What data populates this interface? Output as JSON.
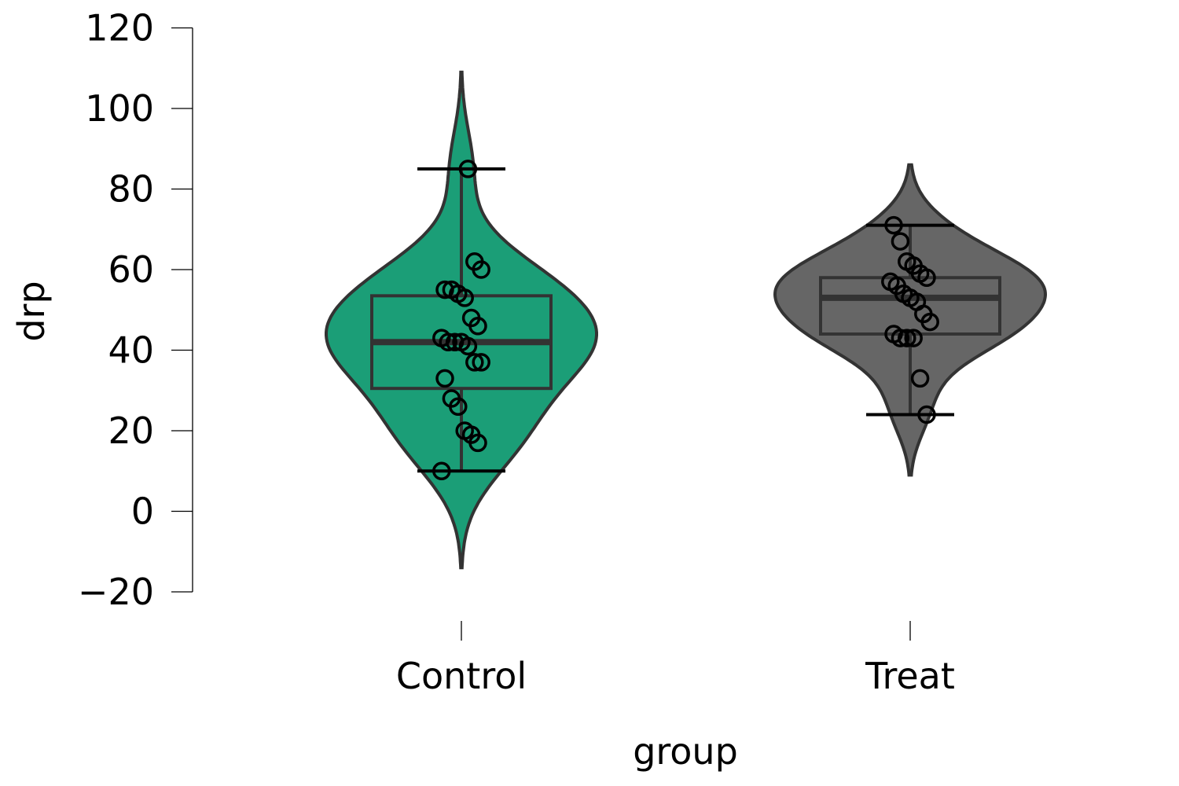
{
  "chart_data": {
    "type": "violin",
    "xlabel": "group",
    "ylabel": "drp",
    "ylim": [
      -20,
      120
    ],
    "y_ticks": [
      -20,
      0,
      20,
      40,
      60,
      80,
      100,
      120
    ],
    "y_tick_labels": [
      "−20",
      "0",
      "20",
      "40",
      "60",
      "80",
      "100",
      "120"
    ],
    "categories": [
      "Control",
      "Treat"
    ],
    "groups": [
      {
        "category": "Control",
        "color": "#1b9e77",
        "box": {
          "q1": 30.5,
          "median": 42,
          "q3": 53.5,
          "whisker_low": 10,
          "whisker_high": 85
        },
        "violin_range": [
          -14,
          109
        ],
        "points": [
          10,
          17,
          19,
          20,
          26,
          28,
          33,
          37,
          37,
          41,
          42,
          42,
          42,
          43,
          46,
          48,
          53,
          54,
          55,
          55,
          60,
          62,
          85
        ]
      },
      {
        "category": "Treat",
        "color": "#666666",
        "box": {
          "q1": 44,
          "median": 53,
          "q3": 58,
          "whisker_low": 24,
          "whisker_high": 71
        },
        "violin_range": [
          9,
          86
        ],
        "points": [
          24,
          33,
          43,
          43,
          43,
          44,
          47,
          49,
          52,
          53,
          54,
          56,
          57,
          58,
          59,
          61,
          62,
          67,
          71
        ]
      }
    ]
  }
}
